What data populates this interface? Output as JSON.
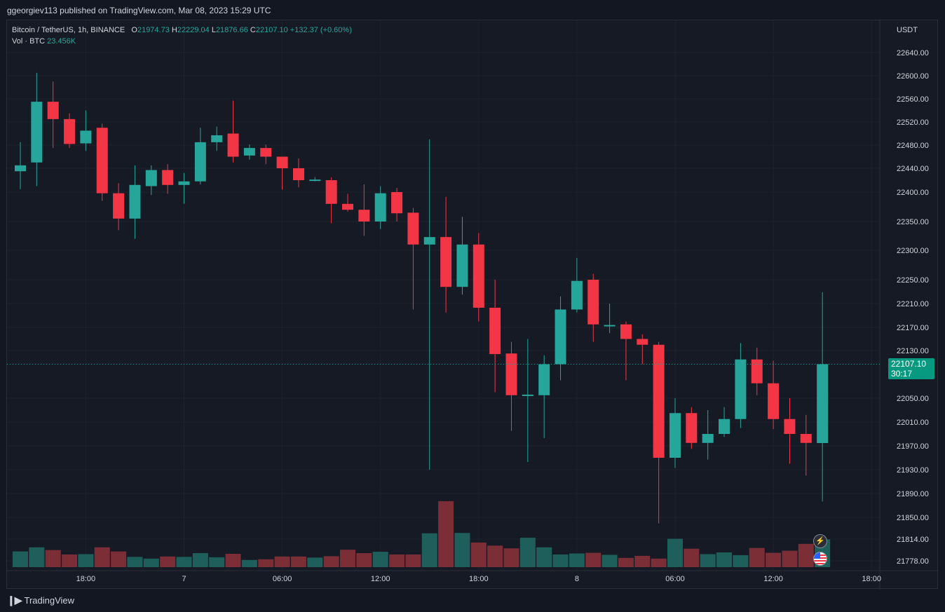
{
  "header": {
    "publisher": "ggeorgiev113 published on TradingView.com, Mar 08, 2023 15:29 UTC"
  },
  "legend": {
    "symbol": "Bitcoin / TetherUS, 1h, BINANCE",
    "o_label": "O",
    "o_value": "21974.73",
    "h_label": "H",
    "h_value": "22229.04",
    "l_label": "L",
    "l_value": "21876.66",
    "c_label": "C",
    "c_value": "22107.10",
    "change": "+132.37 (+0.60%)",
    "vol_label": "Vol · BTC",
    "vol_value": "23.456K"
  },
  "price_tag": {
    "price": "22107.10",
    "countdown": "30:17"
  },
  "footer": {
    "logo": "TradingView"
  },
  "colors": {
    "up": "#26a69a",
    "down": "#f23645",
    "vol_up": "#1f5f5b",
    "vol_down": "#7b2e36",
    "bg": "#131722"
  },
  "icons": {
    "lightning": "lightning-icon",
    "flag": "us-flag-icon"
  },
  "chart_data": {
    "type": "candlestick",
    "symbol": "Bitcoin / TetherUS",
    "interval": "1h",
    "currency_label": "USDT",
    "y_ticks": [
      22640,
      22600,
      22560,
      22520,
      22480,
      22440,
      22400,
      22350,
      22300,
      22250,
      22210,
      22170,
      22130,
      22050,
      22010,
      21970,
      21930,
      21890,
      21850,
      21814,
      21778
    ],
    "y_tick_labels": [
      "22640.00",
      "22600.00",
      "22560.00",
      "22520.00",
      "22480.00",
      "22440.00",
      "22400.00",
      "22350.00",
      "22300.00",
      "22250.00",
      "22210.00",
      "22170.00",
      "22130.00",
      "22050.00",
      "22010.00",
      "21970.00",
      "21930.00",
      "21890.00",
      "21850.00",
      "21814.00",
      "21778.00"
    ],
    "x_tick_labels": [
      {
        "label": "18:00",
        "index": 4
      },
      {
        "label": "7",
        "index": 10
      },
      {
        "label": "06:00",
        "index": 16
      },
      {
        "label": "12:00",
        "index": 22
      },
      {
        "label": "18:00",
        "index": 28
      },
      {
        "label": "8",
        "index": 34
      },
      {
        "label": "06:00",
        "index": 40
      },
      {
        "label": "12:00",
        "index": 46
      },
      {
        "label": "18:00",
        "index": 52
      }
    ],
    "last_price": 22107.1,
    "candles": [
      {
        "o": 22435,
        "h": 22485,
        "l": 22405,
        "c": 22445,
        "v": 0.46
      },
      {
        "o": 22450,
        "h": 22605,
        "l": 22410,
        "c": 22555,
        "v": 0.58
      },
      {
        "o": 22555,
        "h": 22590,
        "l": 22475,
        "c": 22525,
        "v": 0.5
      },
      {
        "o": 22525,
        "h": 22535,
        "l": 22475,
        "c": 22482,
        "v": 0.37
      },
      {
        "o": 22483,
        "h": 22540,
        "l": 22470,
        "c": 22505,
        "v": 0.38
      },
      {
        "o": 22510,
        "h": 22517,
        "l": 22385,
        "c": 22398,
        "v": 0.58
      },
      {
        "o": 22398,
        "h": 22415,
        "l": 22335,
        "c": 22355,
        "v": 0.46
      },
      {
        "o": 22355,
        "h": 22445,
        "l": 22320,
        "c": 22412,
        "v": 0.3
      },
      {
        "o": 22410,
        "h": 22445,
        "l": 22395,
        "c": 22437,
        "v": 0.25
      },
      {
        "o": 22437,
        "h": 22447,
        "l": 22397,
        "c": 22412,
        "v": 0.31
      },
      {
        "o": 22412,
        "h": 22432,
        "l": 22380,
        "c": 22418,
        "v": 0.3
      },
      {
        "o": 22418,
        "h": 22510,
        "l": 22413,
        "c": 22485,
        "v": 0.41
      },
      {
        "o": 22485,
        "h": 22512,
        "l": 22470,
        "c": 22497,
        "v": 0.29
      },
      {
        "o": 22500,
        "h": 22557,
        "l": 22450,
        "c": 22460,
        "v": 0.39
      },
      {
        "o": 22462,
        "h": 22481,
        "l": 22455,
        "c": 22475,
        "v": 0.21
      },
      {
        "o": 22475,
        "h": 22481,
        "l": 22447,
        "c": 22460,
        "v": 0.23
      },
      {
        "o": 22460,
        "h": 22460,
        "l": 22404,
        "c": 22440,
        "v": 0.31
      },
      {
        "o": 22440,
        "h": 22457,
        "l": 22408,
        "c": 22420,
        "v": 0.31
      },
      {
        "o": 22420,
        "h": 22425,
        "l": 22418,
        "c": 22421,
        "v": 0.28
      },
      {
        "o": 22420,
        "h": 22425,
        "l": 22347,
        "c": 22380,
        "v": 0.32
      },
      {
        "o": 22380,
        "h": 22397,
        "l": 22367,
        "c": 22370,
        "v": 0.51
      },
      {
        "o": 22370,
        "h": 22413,
        "l": 22325,
        "c": 22350,
        "v": 0.41
      },
      {
        "o": 22350,
        "h": 22410,
        "l": 22337,
        "c": 22398,
        "v": 0.45
      },
      {
        "o": 22400,
        "h": 22407,
        "l": 22350,
        "c": 22364,
        "v": 0.37
      },
      {
        "o": 22365,
        "h": 22373,
        "l": 22200,
        "c": 22310,
        "v": 0.37
      },
      {
        "o": 22310,
        "h": 22490,
        "l": 21930,
        "c": 22323,
        "v": 0.99
      },
      {
        "o": 22323,
        "h": 22392,
        "l": 22195,
        "c": 22238,
        "v": 1.93
      },
      {
        "o": 22238,
        "h": 22358,
        "l": 22225,
        "c": 22310,
        "v": 1.0
      },
      {
        "o": 22310,
        "h": 22330,
        "l": 22180,
        "c": 22203,
        "v": 0.72
      },
      {
        "o": 22203,
        "h": 22250,
        "l": 22060,
        "c": 22124,
        "v": 0.63
      },
      {
        "o": 22125,
        "h": 22145,
        "l": 21995,
        "c": 22055,
        "v": 0.55
      },
      {
        "o": 22055,
        "h": 22150,
        "l": 21943,
        "c": 22056,
        "v": 0.86
      },
      {
        "o": 22055,
        "h": 22122,
        "l": 21983,
        "c": 22107,
        "v": 0.58
      },
      {
        "o": 22107,
        "h": 22222,
        "l": 22080,
        "c": 22200,
        "v": 0.37
      },
      {
        "o": 22200,
        "h": 22287,
        "l": 22195,
        "c": 22248,
        "v": 0.4
      },
      {
        "o": 22250,
        "h": 22260,
        "l": 22145,
        "c": 22175,
        "v": 0.42
      },
      {
        "o": 22172,
        "h": 22210,
        "l": 22160,
        "c": 22174,
        "v": 0.36
      },
      {
        "o": 22175,
        "h": 22180,
        "l": 22080,
        "c": 22150,
        "v": 0.27
      },
      {
        "o": 22150,
        "h": 22158,
        "l": 22107,
        "c": 22140,
        "v": 0.33
      },
      {
        "o": 22140,
        "h": 22145,
        "l": 21840,
        "c": 21950,
        "v": 0.25
      },
      {
        "o": 21950,
        "h": 22050,
        "l": 21933,
        "c": 22025,
        "v": 0.83
      },
      {
        "o": 22025,
        "h": 22035,
        "l": 21965,
        "c": 21975,
        "v": 0.54
      },
      {
        "o": 21975,
        "h": 22030,
        "l": 21947,
        "c": 21990,
        "v": 0.38
      },
      {
        "o": 21990,
        "h": 22035,
        "l": 21985,
        "c": 22015,
        "v": 0.43
      },
      {
        "o": 22015,
        "h": 22143,
        "l": 22000,
        "c": 22115,
        "v": 0.35
      },
      {
        "o": 22115,
        "h": 22135,
        "l": 22055,
        "c": 22075,
        "v": 0.56
      },
      {
        "o": 22075,
        "h": 22113,
        "l": 21998,
        "c": 22015,
        "v": 0.42
      },
      {
        "o": 22015,
        "h": 22050,
        "l": 21940,
        "c": 21990,
        "v": 0.48
      },
      {
        "o": 21990,
        "h": 22022,
        "l": 21920,
        "c": 21975,
        "v": 0.68
      },
      {
        "o": 21974.73,
        "h": 22229.04,
        "l": 21876.66,
        "c": 22107.1,
        "v": 0.81
      }
    ]
  }
}
